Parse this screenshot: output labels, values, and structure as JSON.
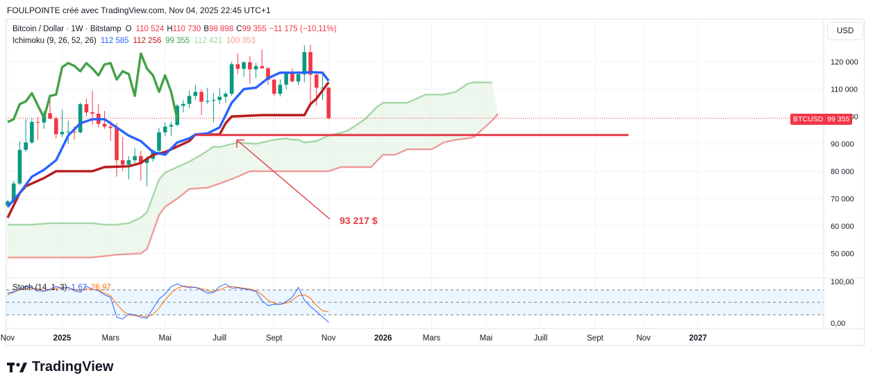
{
  "header": {
    "text": "FOULPOINTE créé avec TradingView.com, Nov 04, 2025 22:45 UTC+1"
  },
  "legend": {
    "symbol": "Bitcoin / Dollar · 1W · Bitstamp",
    "o_label": "O",
    "o_value": "110 524",
    "h_label": "H",
    "h_value": "110 730",
    "b_label": "B",
    "b_value": "98 898",
    "c_label": "C",
    "c_value": "99 355",
    "change": "−11 175 (−10,11%)",
    "ichimoku_name": "Ichimoku (9, 26, 52, 26)",
    "ichimoku_values": [
      "112 585",
      "112 256",
      "99 355",
      "112 421",
      "100 353"
    ],
    "stoch_name": "Stoch (14, 1, 3)",
    "stoch_values": [
      "1,67",
      "26,97"
    ]
  },
  "toolbar": {
    "currency_button": "USD"
  },
  "price_tag": {
    "symbol": "BTCUSD",
    "value": "99 355"
  },
  "annotation": {
    "text": "93 217 $"
  },
  "logo": {
    "text": "TradingView"
  },
  "colors": {
    "up": "#089981",
    "down": "#f23645",
    "tenkan": "#2962ff",
    "kijun": "#b71c1c",
    "chikou": "#43a047",
    "spanA": "#a5d6a7",
    "spanB": "#ef9a9a",
    "stochK": "#2962ff",
    "stochD": "#ff6d00",
    "support": "#e53945"
  },
  "chart_data": {
    "type": "candlestick",
    "price_axis": {
      "ticks": [
        "120 000",
        "110 000",
        "100 000",
        "90 000",
        "80 000",
        "70 000",
        "60 000",
        "50 000"
      ],
      "tick_values": [
        120000,
        110000,
        100000,
        90000,
        80000,
        70000,
        60000,
        50000
      ]
    },
    "stoch_axis": {
      "ticks": [
        "100,00",
        "0,00"
      ],
      "upper_band": 80,
      "lower_band": 20
    },
    "time_axis": {
      "labels": [
        "Nov",
        "2025",
        "Mars",
        "Mai",
        "Juill",
        "Sept",
        "Nov",
        "2026",
        "Mars",
        "Mai",
        "Juill",
        "Sept",
        "Nov",
        "2027"
      ],
      "label_weeks": [
        0,
        9,
        17,
        26,
        35,
        44,
        53,
        62,
        70,
        79,
        88,
        97,
        105,
        114
      ]
    },
    "candles": [
      [
        67500,
        69500,
        66800,
        69000
      ],
      [
        69000,
        76500,
        68500,
        75500
      ],
      [
        75500,
        91000,
        75000,
        87800
      ],
      [
        87800,
        99000,
        87000,
        90500
      ],
      [
        90500,
        99500,
        90000,
        98000
      ],
      [
        98000,
        99800,
        91500,
        97800
      ],
      [
        97800,
        102000,
        95500,
        101200
      ],
      [
        101200,
        106000,
        99000,
        99200
      ],
      [
        99200,
        100000,
        92000,
        93500
      ],
      [
        93500,
        102500,
        92500,
        94400
      ],
      [
        94400,
        98500,
        90000,
        94500
      ],
      [
        94500,
        96500,
        91500,
        94200
      ],
      [
        94200,
        105000,
        93800,
        104500
      ],
      [
        104500,
        106500,
        100000,
        101500
      ],
      [
        101500,
        109500,
        97000,
        101000
      ],
      [
        101000,
        104500,
        96000,
        97300
      ],
      [
        97300,
        102000,
        95500,
        96300
      ],
      [
        96300,
        98500,
        91000,
        95800
      ],
      [
        95800,
        97500,
        78000,
        84000
      ],
      [
        84000,
        92500,
        80000,
        82400
      ],
      [
        82400,
        85500,
        77000,
        84000
      ],
      [
        84000,
        88500,
        83000,
        85500
      ],
      [
        85500,
        87500,
        76500,
        83000
      ],
      [
        83000,
        85500,
        74500,
        84500
      ],
      [
        84500,
        88000,
        83500,
        87500
      ],
      [
        87500,
        95800,
        87000,
        94200
      ],
      [
        94200,
        97800,
        92800,
        96300
      ],
      [
        96300,
        98000,
        93000,
        96900
      ],
      [
        96900,
        104500,
        96500,
        103900
      ],
      [
        103900,
        106000,
        101500,
        104600
      ],
      [
        104600,
        109500,
        103000,
        107500
      ],
      [
        107500,
        111500,
        106000,
        109000
      ],
      [
        109000,
        110000,
        100500,
        105400
      ],
      [
        105400,
        110500,
        104500,
        105700
      ],
      [
        105700,
        108500,
        98000,
        106000
      ],
      [
        106000,
        110500,
        104500,
        107200
      ],
      [
        107200,
        109000,
        105000,
        108300
      ],
      [
        108300,
        120000,
        107500,
        119100
      ],
      [
        119100,
        123000,
        115500,
        117400
      ],
      [
        117400,
        120000,
        114500,
        119800
      ],
      [
        119800,
        122000,
        112000,
        117200
      ],
      [
        117200,
        119500,
        114000,
        118400
      ],
      [
        118400,
        124500,
        117500,
        117600
      ],
      [
        117600,
        118000,
        111500,
        113400
      ],
      [
        113400,
        114000,
        107500,
        108300
      ],
      [
        108300,
        113500,
        107300,
        111600
      ],
      [
        111600,
        116500,
        110000,
        115900
      ],
      [
        115900,
        117500,
        112500,
        112800
      ],
      [
        112800,
        116500,
        111500,
        115400
      ],
      [
        115400,
        126000,
        112500,
        123500
      ],
      [
        123500,
        126200,
        104000,
        115300
      ],
      [
        115300,
        116000,
        104000,
        110500
      ],
      [
        110500,
        116500,
        106000,
        110500
      ],
      [
        110524,
        110730,
        98898,
        99355
      ]
    ],
    "ichimoku": {
      "tenkan": [
        [
          0,
          67000
        ],
        [
          2,
          72000
        ],
        [
          4,
          78000
        ],
        [
          6,
          80500
        ],
        [
          8,
          84000
        ],
        [
          10,
          93000
        ],
        [
          12,
          97500
        ],
        [
          14,
          99000
        ],
        [
          16,
          99000
        ],
        [
          18,
          96000
        ],
        [
          20,
          93000
        ],
        [
          22,
          91000
        ],
        [
          24,
          87000
        ],
        [
          26,
          86000
        ],
        [
          28,
          90500
        ],
        [
          30,
          92000
        ],
        [
          31,
          93400
        ],
        [
          33,
          93800
        ],
        [
          35,
          96000
        ],
        [
          37,
          105000
        ],
        [
          39,
          110000
        ],
        [
          41,
          110500
        ],
        [
          43,
          114000
        ],
        [
          45,
          116000
        ],
        [
          49,
          116000
        ],
        [
          50,
          116200
        ],
        [
          52,
          116000
        ],
        [
          53,
          113000
        ]
      ],
      "kijun": [
        [
          0,
          63000
        ],
        [
          2,
          72000
        ],
        [
          3,
          74500
        ],
        [
          6,
          77500
        ],
        [
          8,
          80000
        ],
        [
          14,
          80000
        ],
        [
          16,
          81500
        ],
        [
          20,
          81800
        ],
        [
          22,
          83000
        ],
        [
          24,
          86000
        ],
        [
          26,
          87000
        ],
        [
          28,
          89000
        ],
        [
          30,
          91000
        ],
        [
          31,
          93400
        ],
        [
          35,
          93400
        ],
        [
          36,
          97500
        ],
        [
          37,
          100000
        ],
        [
          42,
          100500
        ],
        [
          49,
          100500
        ],
        [
          50,
          104500
        ],
        [
          51,
          106500
        ],
        [
          53,
          112500
        ]
      ],
      "chikou": [
        [
          0,
          98000
        ],
        [
          1,
          99000
        ],
        [
          2,
          104500
        ],
        [
          3,
          105500
        ],
        [
          4,
          108500
        ],
        [
          5,
          104000
        ],
        [
          6,
          99500
        ],
        [
          7,
          107500
        ],
        [
          8,
          108000
        ],
        [
          9,
          118000
        ],
        [
          10,
          119500
        ],
        [
          11,
          118500
        ],
        [
          12,
          116500
        ],
        [
          13,
          119500
        ],
        [
          14,
          117500
        ],
        [
          15,
          115000
        ],
        [
          16,
          119000
        ],
        [
          17,
          119500
        ],
        [
          18,
          113500
        ],
        [
          19,
          116500
        ],
        [
          20,
          115500
        ],
        [
          21,
          107500
        ],
        [
          22,
          123000
        ],
        [
          23,
          117500
        ],
        [
          24,
          115000
        ],
        [
          25,
          109000
        ],
        [
          26,
          115000
        ],
        [
          27,
          109000
        ],
        [
          28,
          99000
        ]
      ],
      "span_a": [
        [
          0,
          60500
        ],
        [
          4,
          60500
        ],
        [
          7,
          61000
        ],
        [
          12,
          61000
        ],
        [
          14,
          61000
        ],
        [
          16,
          60500
        ],
        [
          18,
          60500
        ],
        [
          20,
          61000
        ],
        [
          22,
          63000
        ],
        [
          23,
          65000
        ],
        [
          25,
          77000
        ],
        [
          26,
          79500
        ],
        [
          28,
          81500
        ],
        [
          30,
          83500
        ],
        [
          32,
          86000
        ],
        [
          34,
          89000
        ],
        [
          35,
          88800
        ],
        [
          38,
          90500
        ],
        [
          41,
          90000
        ],
        [
          44,
          91500
        ],
        [
          46,
          92000
        ],
        [
          47,
          91500
        ],
        [
          48,
          91500
        ],
        [
          49,
          90500
        ],
        [
          51,
          91000
        ],
        [
          53,
          93000
        ],
        [
          55,
          94000
        ],
        [
          56,
          94700
        ],
        [
          57,
          96000
        ],
        [
          59,
          99000
        ],
        [
          61,
          103500
        ],
        [
          62,
          105000
        ],
        [
          66,
          105000
        ],
        [
          69,
          108000
        ],
        [
          72,
          108000
        ],
        [
          74,
          109000
        ],
        [
          76,
          112000
        ],
        [
          77,
          112500
        ],
        [
          80,
          112400
        ]
      ],
      "span_b": [
        [
          0,
          48500
        ],
        [
          12,
          48500
        ],
        [
          14,
          48500
        ],
        [
          18,
          49500
        ],
        [
          22,
          50000
        ],
        [
          23,
          51500
        ],
        [
          25,
          64000
        ],
        [
          26,
          67000
        ],
        [
          28,
          70000
        ],
        [
          30,
          73500
        ],
        [
          33,
          74000
        ],
        [
          35,
          75500
        ],
        [
          38,
          78000
        ],
        [
          40,
          80000
        ],
        [
          42,
          80000
        ],
        [
          53,
          80000
        ],
        [
          55,
          81500
        ],
        [
          60,
          81500
        ],
        [
          62,
          86000
        ],
        [
          64,
          86000
        ],
        [
          66,
          88000
        ],
        [
          70,
          88000
        ],
        [
          72,
          90500
        ],
        [
          74,
          91500
        ],
        [
          76,
          92000
        ],
        [
          77,
          92500
        ],
        [
          80,
          98500
        ],
        [
          81,
          101000
        ]
      ]
    },
    "support_line": {
      "price": 93217,
      "label": "93 217 $"
    },
    "stochastic": {
      "k": [
        [
          0,
          72
        ],
        [
          1,
          75
        ],
        [
          2,
          82
        ],
        [
          3,
          88
        ],
        [
          4,
          85
        ],
        [
          5,
          78
        ],
        [
          6,
          76
        ],
        [
          7,
          82
        ],
        [
          8,
          88
        ],
        [
          9,
          84
        ],
        [
          10,
          86
        ],
        [
          11,
          78
        ],
        [
          12,
          74
        ],
        [
          13,
          88
        ],
        [
          14,
          82
        ],
        [
          15,
          78
        ],
        [
          16,
          68
        ],
        [
          17,
          62
        ],
        [
          18,
          14
        ],
        [
          19,
          10
        ],
        [
          20,
          22
        ],
        [
          21,
          20
        ],
        [
          22,
          14
        ],
        [
          23,
          12
        ],
        [
          24,
          35
        ],
        [
          25,
          58
        ],
        [
          26,
          70
        ],
        [
          27,
          88
        ],
        [
          28,
          94
        ],
        [
          29,
          88
        ],
        [
          30,
          85
        ],
        [
          31,
          86
        ],
        [
          32,
          80
        ],
        [
          33,
          72
        ],
        [
          34,
          74
        ],
        [
          35,
          88
        ],
        [
          36,
          94
        ],
        [
          37,
          84
        ],
        [
          38,
          85
        ],
        [
          39,
          82
        ],
        [
          40,
          80
        ],
        [
          41,
          76
        ],
        [
          42,
          54
        ],
        [
          43,
          42
        ],
        [
          44,
          45
        ],
        [
          45,
          45
        ],
        [
          46,
          52
        ],
        [
          47,
          62
        ],
        [
          48,
          86
        ],
        [
          49,
          55
        ],
        [
          50,
          40
        ],
        [
          51,
          28
        ],
        [
          52,
          15
        ],
        [
          53,
          2
        ]
      ],
      "d": [
        [
          0,
          68
        ],
        [
          1,
          74
        ],
        [
          2,
          80
        ],
        [
          3,
          84
        ],
        [
          4,
          85
        ],
        [
          5,
          82
        ],
        [
          6,
          79
        ],
        [
          7,
          80
        ],
        [
          8,
          84
        ],
        [
          9,
          85
        ],
        [
          10,
          85
        ],
        [
          11,
          81
        ],
        [
          12,
          78
        ],
        [
          13,
          82
        ],
        [
          14,
          81
        ],
        [
          15,
          79
        ],
        [
          16,
          72
        ],
        [
          17,
          66
        ],
        [
          18,
          46
        ],
        [
          19,
          30
        ],
        [
          20,
          20
        ],
        [
          21,
          18
        ],
        [
          22,
          18
        ],
        [
          23,
          15
        ],
        [
          24,
          20
        ],
        [
          25,
          36
        ],
        [
          26,
          56
        ],
        [
          27,
          72
        ],
        [
          28,
          84
        ],
        [
          29,
          89
        ],
        [
          30,
          88
        ],
        [
          31,
          86
        ],
        [
          32,
          83
        ],
        [
          33,
          78
        ],
        [
          34,
          75
        ],
        [
          35,
          80
        ],
        [
          36,
          86
        ],
        [
          37,
          88
        ],
        [
          38,
          86
        ],
        [
          39,
          84
        ],
        [
          40,
          82
        ],
        [
          41,
          78
        ],
        [
          42,
          68
        ],
        [
          43,
          55
        ],
        [
          44,
          48
        ],
        [
          45,
          45
        ],
        [
          46,
          48
        ],
        [
          47,
          55
        ],
        [
          48,
          66
        ],
        [
          49,
          68
        ],
        [
          50,
          60
        ],
        [
          51,
          42
        ],
        [
          52,
          30
        ],
        [
          53,
          27
        ]
      ]
    }
  }
}
